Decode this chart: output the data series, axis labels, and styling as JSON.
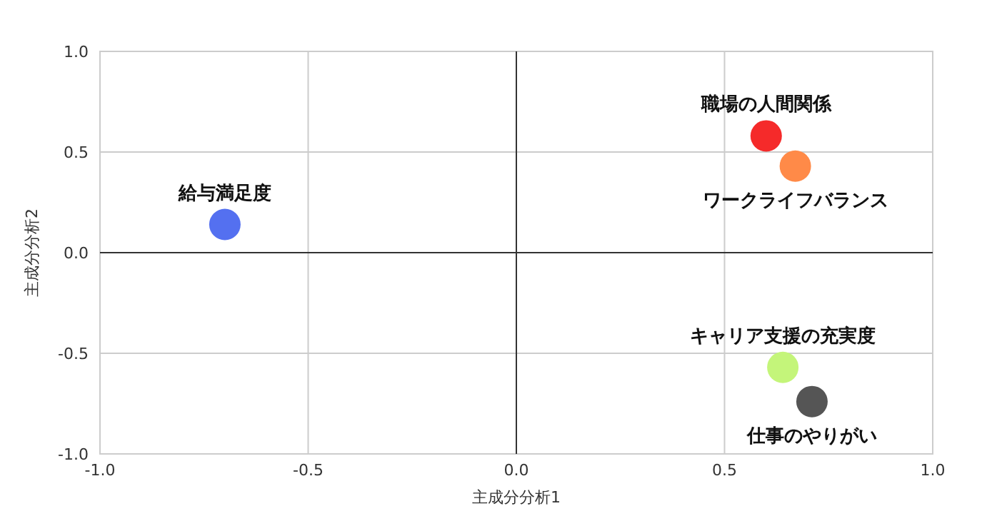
{
  "chart_data": {
    "type": "scatter",
    "xlabel": "主成分分析1",
    "ylabel": "主成分分析2",
    "xlim": [
      -1,
      1
    ],
    "ylim": [
      -1,
      1
    ],
    "xticks": [
      {
        "value": -1,
        "label": "-1.0"
      },
      {
        "value": -0.5,
        "label": "-0.5"
      },
      {
        "value": 0,
        "label": "0.0"
      },
      {
        "value": 0.5,
        "label": "0.5"
      },
      {
        "value": 1,
        "label": "1.0"
      }
    ],
    "yticks": [
      {
        "value": -1,
        "label": "-1.0"
      },
      {
        "value": -0.5,
        "label": "-0.5"
      },
      {
        "value": 0,
        "label": "0.0"
      },
      {
        "value": 0.5,
        "label": "0.5"
      },
      {
        "value": 1,
        "label": "1.0"
      }
    ],
    "grid": true,
    "marker": "circle",
    "series": [
      {
        "name": "給与満足度",
        "color": "#5470f0",
        "x": [
          -0.7
        ],
        "values": [
          0.14
        ]
      },
      {
        "name": "職場の人間関係",
        "color": "#f52a2a",
        "x": [
          0.6
        ],
        "values": [
          0.58
        ]
      },
      {
        "name": "ワークライフバランス",
        "color": "#ff8a48",
        "x": [
          0.67
        ],
        "values": [
          0.43
        ]
      },
      {
        "name": "キャリア支援の充実度",
        "color": "#c4f57a",
        "x": [
          0.64
        ],
        "values": [
          -0.57
        ]
      },
      {
        "name": "仕事のやりがい",
        "color": "#555555",
        "x": [
          0.71
        ],
        "values": [
          -0.74
        ]
      }
    ]
  }
}
